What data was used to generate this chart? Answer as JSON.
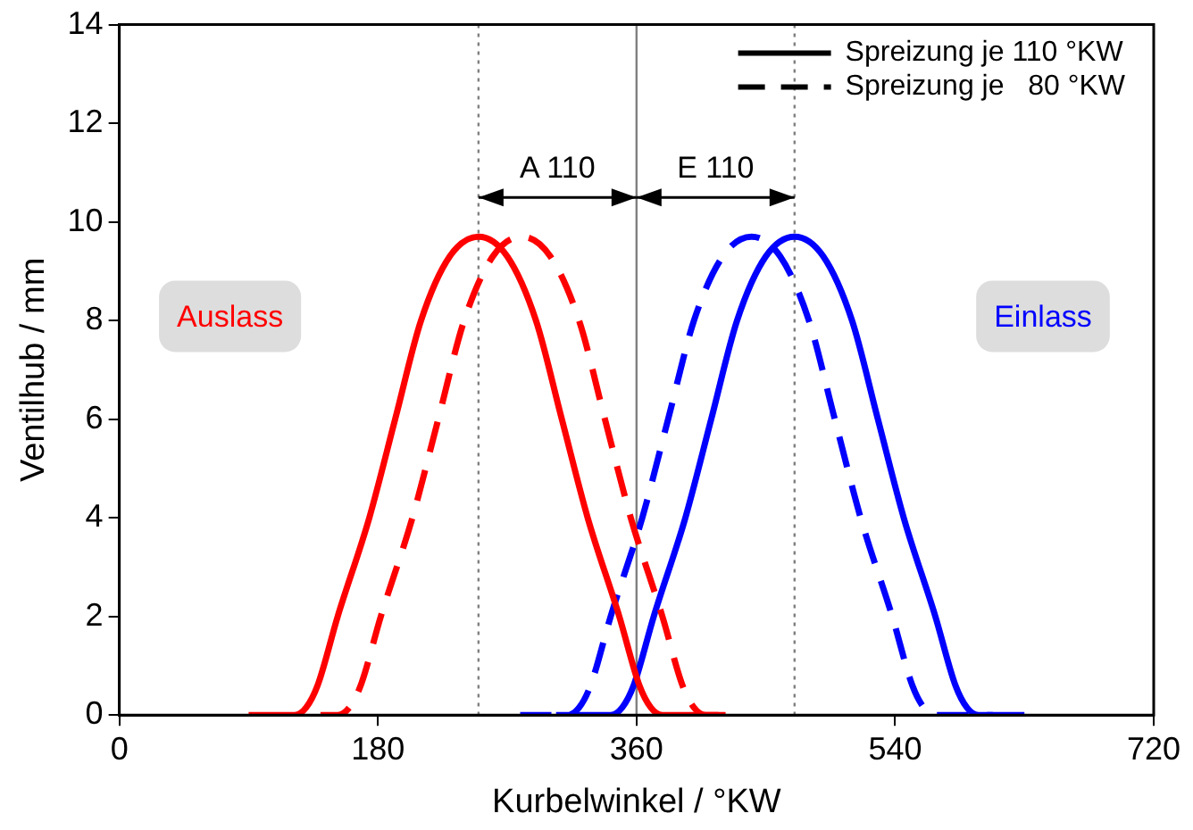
{
  "chart_data": {
    "type": "line",
    "xlabel": "Kurbelwinkel / °KW",
    "ylabel": "Ventilhub / mm",
    "xlim": [
      0,
      720
    ],
    "xticks": [
      0,
      180,
      360,
      540,
      720
    ],
    "ylim": [
      0,
      14
    ],
    "yticks": [
      0,
      2,
      4,
      6,
      8,
      10,
      12,
      14
    ],
    "grid": false,
    "legend": "top right",
    "marker": "none",
    "series": [
      {
        "name": "Spreizung je 110 °KW",
        "color": "#ff0000",
        "line_style": "solid",
        "x": [
          90,
          122,
          130,
          138,
          152,
          174,
          192,
          210,
          230,
          250,
          270,
          290,
          308,
          326,
          348,
          362,
          370,
          378,
          422
        ],
        "values": [
          0,
          0,
          0.15,
          0.6,
          2.0,
          4.0,
          6.0,
          8.0,
          9.3,
          9.7,
          9.3,
          8.0,
          6.0,
          4.0,
          2.0,
          0.6,
          0.15,
          0,
          0
        ]
      },
      {
        "name": "Spreizung je   80 °KW",
        "color": "#ff0000",
        "line_style": "dashed",
        "x": [
          140,
          152,
          160,
          168,
          182,
          204,
          222,
          240,
          260,
          280,
          300,
          320,
          338,
          356,
          378,
          392,
          400,
          408,
          422
        ],
        "values": [
          0,
          0,
          0.15,
          0.6,
          2.0,
          4.0,
          6.0,
          8.0,
          9.3,
          9.7,
          9.3,
          8.0,
          6.0,
          4.0,
          2.0,
          0.6,
          0.15,
          0,
          0
        ]
      },
      {
        "color": "#0000ff",
        "line_style": "dashed",
        "x": [
          279,
          312,
          320,
          328,
          342,
          364,
          382,
          400,
          420,
          440,
          460,
          480,
          498,
          516,
          538,
          552,
          560,
          568,
          608
        ],
        "values": [
          0,
          0,
          0.15,
          0.6,
          2.0,
          4.0,
          6.0,
          8.0,
          9.3,
          9.7,
          9.3,
          8.0,
          6.0,
          4.0,
          2.0,
          0.6,
          0.15,
          0,
          0
        ]
      },
      {
        "color": "#0000ff",
        "line_style": "solid",
        "x": [
          304,
          342,
          350,
          358,
          372,
          394,
          412,
          430,
          450,
          470,
          490,
          510,
          528,
          546,
          568,
          582,
          590,
          598,
          630
        ],
        "values": [
          0,
          0,
          0.15,
          0.6,
          2.0,
          4.0,
          6.0,
          8.0,
          9.3,
          9.7,
          9.3,
          8.0,
          6.0,
          4.0,
          2.0,
          0.6,
          0.15,
          0,
          0
        ]
      }
    ],
    "ref_lines": [
      {
        "axis": "x",
        "value": 250,
        "color": "#808080",
        "line_style": "dotted"
      },
      {
        "axis": "x",
        "value": 360,
        "color": "#808080",
        "line_style": "solid"
      },
      {
        "axis": "x",
        "value": 470,
        "color": "#808080",
        "line_style": "dotted"
      }
    ],
    "annotations": [
      "A 110",
      "E 110",
      "Auslass",
      "Einlass"
    ]
  }
}
